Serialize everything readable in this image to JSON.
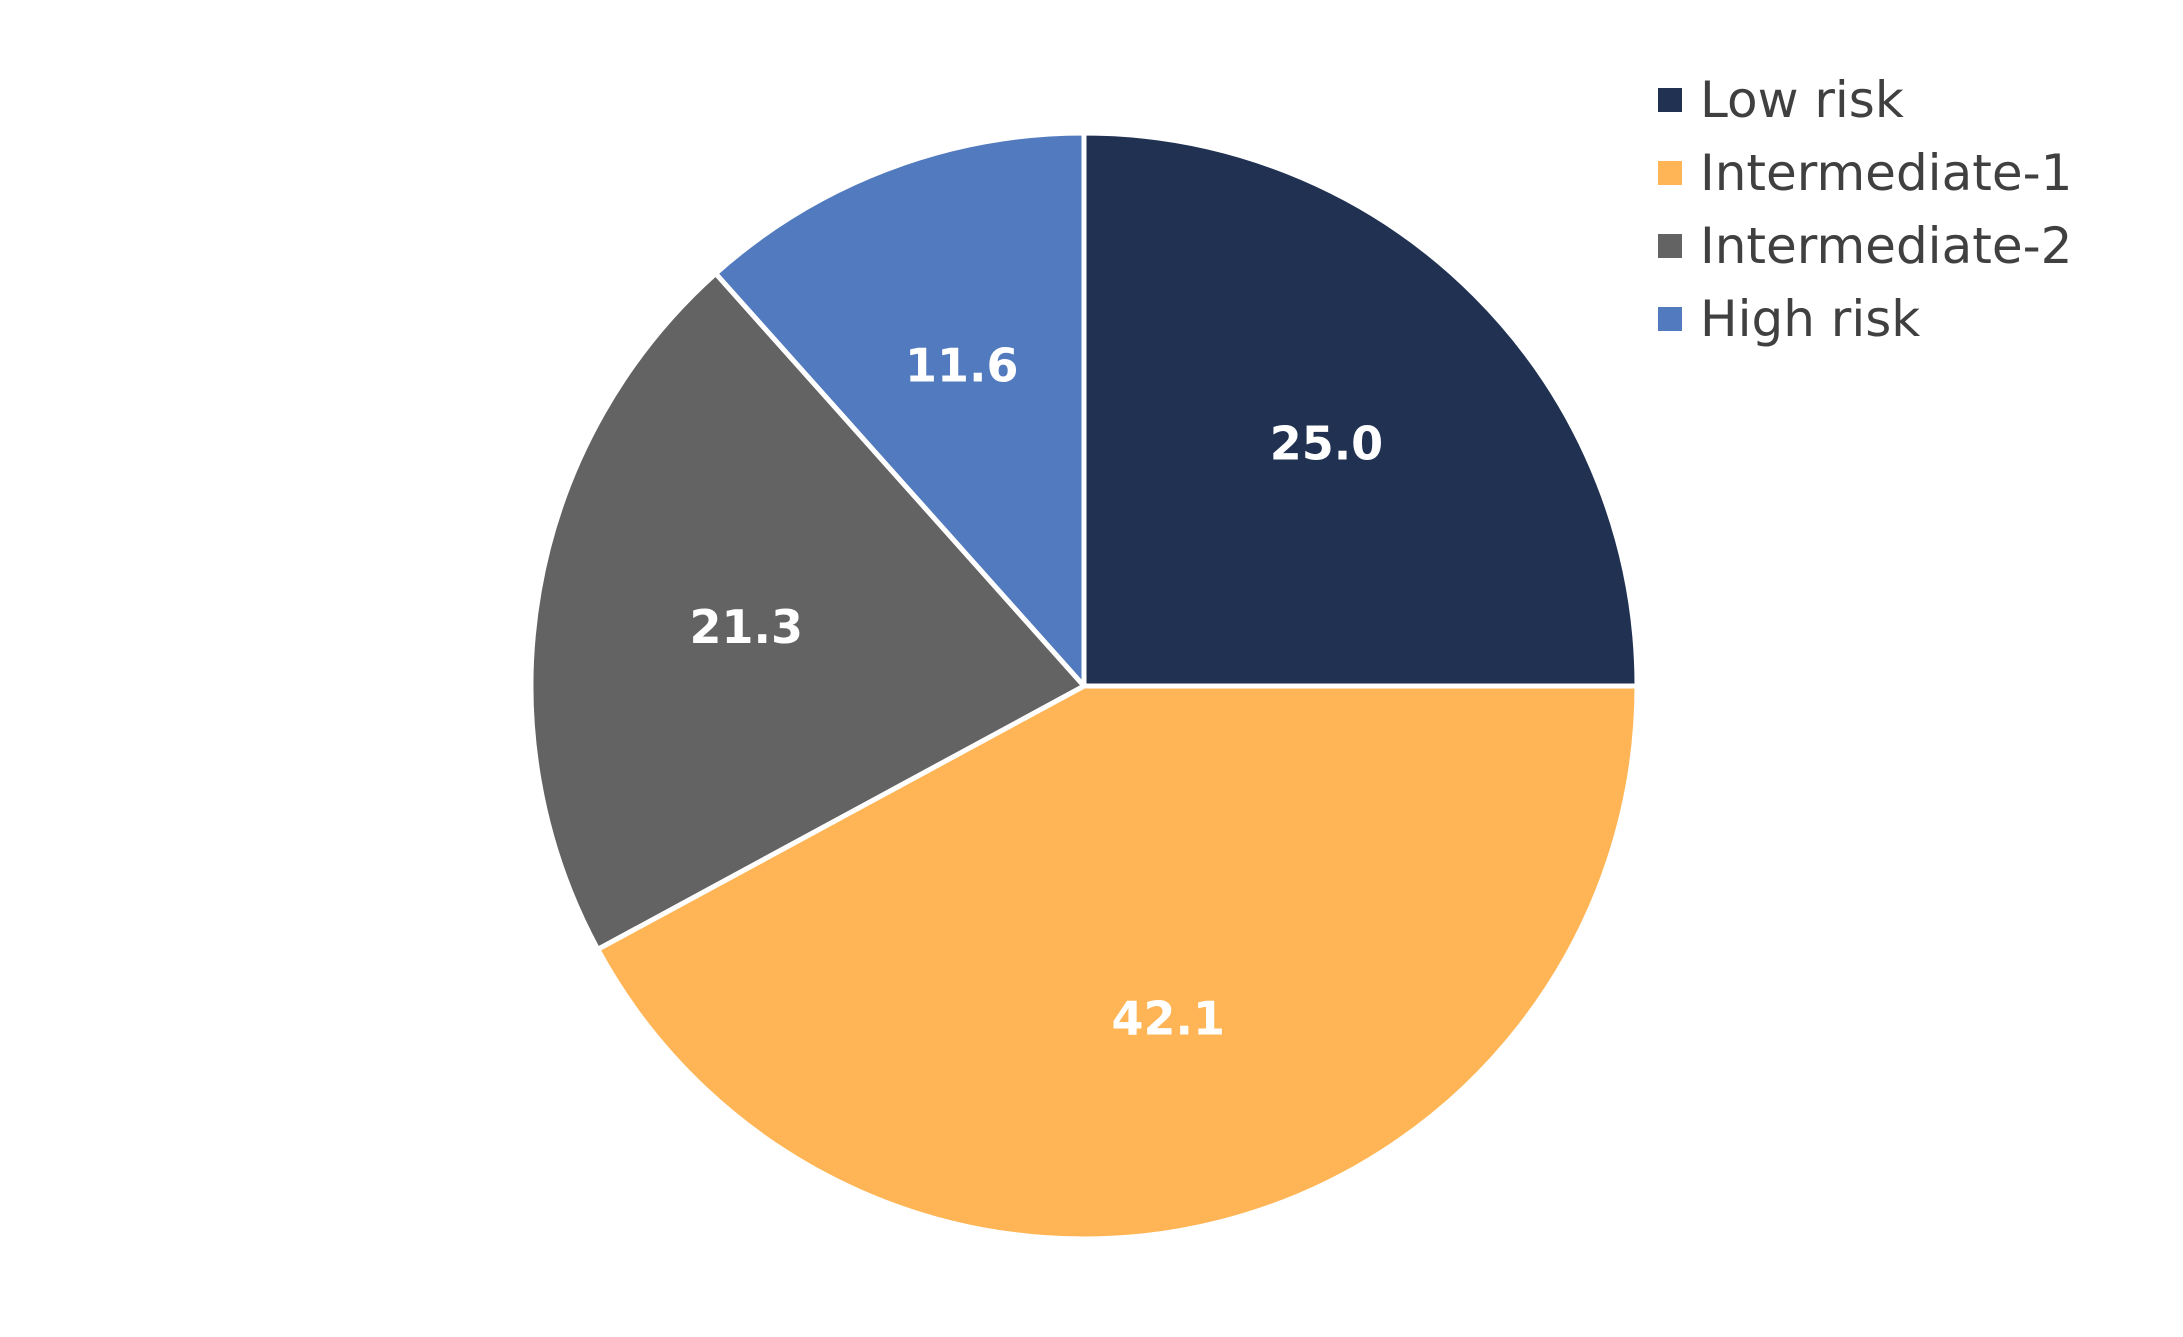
{
  "chart_data": {
    "type": "pie",
    "title": "",
    "categories": [
      "Low risk",
      "Intermediate-1",
      "Intermediate-2",
      "High risk"
    ],
    "values": [
      25.0,
      42.1,
      21.3,
      11.6
    ],
    "value_labels": [
      "25.0",
      "42.1",
      "21.3",
      "11.6"
    ],
    "colors": [
      "#203152",
      "#FFB555",
      "#636363",
      "#527ABE"
    ],
    "start_angle": "12 o'clock",
    "direction": "clockwise",
    "legend": {
      "position": "top-right",
      "entries": [
        "Low risk",
        "Intermediate-1",
        "Intermediate-2",
        "High risk"
      ]
    }
  }
}
